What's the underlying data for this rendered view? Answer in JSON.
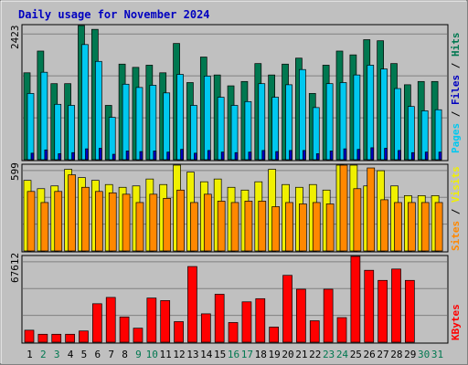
{
  "chart_data": [
    {
      "type": "bar",
      "title": "Daily usage for November 2024",
      "panel": "hits-files-pages",
      "categories": [
        "1",
        "2",
        "3",
        "4",
        "5",
        "6",
        "7",
        "8",
        "9",
        "10",
        "11",
        "12",
        "13",
        "14",
        "15",
        "16",
        "17",
        "18",
        "19",
        "20",
        "21",
        "22",
        "23",
        "24",
        "25",
        "26",
        "27",
        "28",
        "29",
        "30",
        "31"
      ],
      "ytick_label": "2423",
      "ylabels": [
        "Pages",
        "Files",
        "Hits"
      ],
      "series": [
        {
          "name": "Hits",
          "values": [
            1600,
            2000,
            1400,
            1400,
            2470,
            2400,
            1000,
            1760,
            1700,
            1740,
            1600,
            2140,
            1420,
            1890,
            1560,
            1360,
            1440,
            1770,
            1560,
            1760,
            1870,
            1220,
            1740,
            2000,
            1930,
            2210,
            2190,
            1770,
            1380,
            1440,
            1440
          ]
        },
        {
          "name": "Files",
          "values": [
            1220,
            1610,
            1020,
            1000,
            2120,
            1810,
            780,
            1390,
            1330,
            1370,
            1230,
            1570,
            1000,
            1540,
            1150,
            1000,
            1070,
            1400,
            1150,
            1380,
            1660,
            960,
            1400,
            1420,
            1560,
            1740,
            1670,
            1310,
            980,
            900,
            920
          ]
        },
        {
          "name": "Pages",
          "values": [
            120,
            180,
            110,
            130,
            200,
            210,
            100,
            160,
            150,
            160,
            140,
            190,
            120,
            170,
            140,
            130,
            140,
            170,
            150,
            170,
            170,
            110,
            160,
            200,
            190,
            220,
            210,
            170,
            130,
            140,
            140
          ]
        }
      ],
      "colors": {
        "Hits": "#007850",
        "Files": "#00c8f0",
        "Pages": "#0000c0"
      },
      "day_label_colors": {
        "weekday": "#000000",
        "weekend": "#007850"
      }
    },
    {
      "type": "bar",
      "panel": "visits-sites",
      "categories": [
        "1",
        "2",
        "3",
        "4",
        "5",
        "6",
        "7",
        "8",
        "9",
        "10",
        "11",
        "12",
        "13",
        "14",
        "15",
        "16",
        "17",
        "18",
        "19",
        "20",
        "21",
        "22",
        "23",
        "24",
        "25",
        "26",
        "27",
        "28",
        "29",
        "30",
        "31"
      ],
      "ytick_label": "599",
      "ylabels": [
        "Sites",
        "Visits"
      ],
      "series": [
        {
          "name": "Visits",
          "values": [
            510,
            450,
            470,
            590,
            530,
            510,
            480,
            460,
            470,
            520,
            480,
            620,
            570,
            500,
            520,
            460,
            440,
            500,
            590,
            480,
            460,
            480,
            440,
            620,
            620,
            470,
            580,
            470,
            400,
            400,
            400
          ]
        },
        {
          "name": "Sites",
          "values": [
            430,
            350,
            430,
            550,
            460,
            430,
            420,
            410,
            350,
            410,
            380,
            440,
            350,
            410,
            360,
            350,
            360,
            360,
            320,
            350,
            340,
            350,
            340,
            620,
            450,
            600,
            370,
            350,
            350,
            350,
            350
          ]
        }
      ],
      "colors": {
        "Visits": "#f0f000",
        "Sites": "#ff8800"
      }
    },
    {
      "type": "bar",
      "panel": "kbytes",
      "categories": [
        "1",
        "2",
        "3",
        "4",
        "5",
        "6",
        "7",
        "8",
        "9",
        "10",
        "11",
        "12",
        "13",
        "14",
        "15",
        "16",
        "17",
        "18",
        "19",
        "20",
        "21",
        "22",
        "23",
        "24",
        "25",
        "26",
        "27",
        "28",
        "29",
        "30",
        "31"
      ],
      "ytick_label": "67612",
      "ylabels": [
        "KBytes"
      ],
      "series": [
        {
          "name": "KBytes",
          "values": [
            9500,
            6300,
            6300,
            6300,
            8900,
            30500,
            35500,
            20000,
            11100,
            35000,
            33000,
            16300,
            60000,
            22500,
            38000,
            15600,
            32000,
            34500,
            12000,
            53000,
            42000,
            17000,
            42000,
            19500,
            68000,
            57000,
            49000,
            58000,
            49000,
            0,
            0
          ]
        }
      ],
      "colors": {
        "KBytes": "#ff0000"
      }
    }
  ]
}
